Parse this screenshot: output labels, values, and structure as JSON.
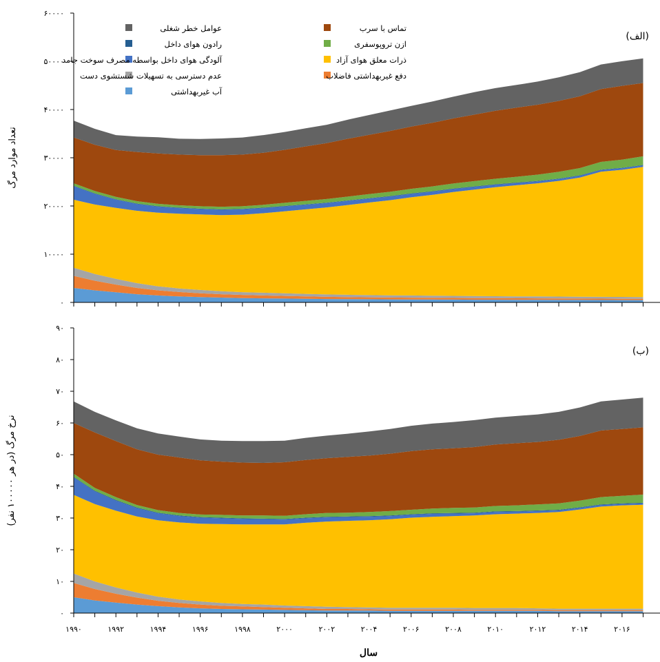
{
  "chart_data": [
    {
      "type": "area",
      "stacked": true,
      "panel_label": "(الف)",
      "ylabel": "تعداد موارد مرگ",
      "xlabel": "",
      "ylim": [
        0,
        60000
      ],
      "yticks": [
        "۰",
        "۱۰۰۰۰",
        "۲۰۰۰۰",
        "۳۰۰۰۰",
        "۴۰۰۰۰",
        "۵۰۰۰۰",
        "۶۰۰۰۰"
      ],
      "legend_position": "top",
      "x": [
        1990,
        1991,
        1992,
        1993,
        1994,
        1995,
        1996,
        1997,
        1998,
        1999,
        2000,
        2001,
        2002,
        2003,
        2004,
        2005,
        2006,
        2007,
        2008,
        2009,
        2010,
        2011,
        2012,
        2013,
        2014,
        2015,
        2016,
        2017
      ],
      "series": [
        {
          "name": "آب غیربهداشتی",
          "color": "#5b9bd5",
          "values": [
            3000,
            2500,
            2100,
            1700,
            1450,
            1250,
            1100,
            1000,
            900,
            850,
            800,
            750,
            700,
            680,
            650,
            630,
            620,
            600,
            580,
            560,
            550,
            540,
            530,
            520,
            510,
            500,
            490,
            480
          ]
        },
        {
          "name": "دفع غیربهداشتی فاضلاب",
          "color": "#ed7d31",
          "values": [
            2500,
            2000,
            1600,
            1300,
            1050,
            900,
            800,
            700,
            650,
            600,
            550,
            500,
            450,
            420,
            400,
            380,
            370,
            360,
            350,
            340,
            330,
            320,
            310,
            300,
            290,
            280,
            270,
            260
          ]
        },
        {
          "name": "عدم دسترسی به تسهیلات شستشوی دست",
          "color": "#a5a5a5",
          "values": [
            1700,
            1400,
            1200,
            1000,
            850,
            750,
            680,
            620,
            580,
            560,
            540,
            520,
            500,
            480,
            470,
            460,
            450,
            440,
            430,
            420,
            410,
            400,
            400,
            390,
            390,
            380,
            380,
            380
          ]
        },
        {
          "name": "ذرات معلق هوای آزاد",
          "color": "#ffc000",
          "values": [
            14100,
            14400,
            14700,
            15000,
            15250,
            15500,
            15670,
            15780,
            16070,
            16490,
            17010,
            17530,
            18050,
            18620,
            19190,
            19730,
            20360,
            20900,
            21540,
            22080,
            22610,
            23040,
            23460,
            23990,
            24710,
            25940,
            26360,
            26980
          ]
        },
        {
          "name": "آلودگی هوای داخل بواسطه مصرف سوخت جامد",
          "color": "#4472c4",
          "values": [
            2800,
            2200,
            1700,
            1400,
            1250,
            1150,
            1100,
            1100,
            1100,
            1050,
            1000,
            950,
            900,
            850,
            800,
            750,
            700,
            650,
            600,
            550,
            500,
            450,
            400,
            380,
            360,
            340,
            320,
            300
          ]
        },
        {
          "name": "رادون هوای داخل",
          "color": "#255e91",
          "values": [
            100,
            100,
            100,
            100,
            100,
            100,
            100,
            100,
            100,
            100,
            100,
            100,
            100,
            100,
            100,
            100,
            100,
            100,
            100,
            100,
            100,
            100,
            100,
            100,
            100,
            100,
            100,
            100
          ]
        },
        {
          "name": "ازن تروپوسفری",
          "color": "#70ad47",
          "values": [
            500,
            500,
            500,
            500,
            500,
            500,
            500,
            550,
            550,
            600,
            650,
            700,
            750,
            800,
            850,
            900,
            950,
            1000,
            1050,
            1100,
            1150,
            1200,
            1300,
            1400,
            1500,
            1600,
            1700,
            1800
          ]
        },
        {
          "name": "تماس با سرب",
          "color": "#9e480e",
          "values": [
            9500,
            9600,
            9700,
            10200,
            10450,
            10500,
            10600,
            10700,
            10700,
            10800,
            11000,
            11300,
            11600,
            12000,
            12300,
            12600,
            12900,
            13200,
            13500,
            13800,
            14100,
            14350,
            14500,
            14700,
            14900,
            15100,
            15300,
            15200
          ]
        },
        {
          "name": "عوامل خطر شغلی",
          "color": "#636363",
          "values": [
            3500,
            3300,
            3100,
            3200,
            3350,
            3300,
            3350,
            3450,
            3550,
            3650,
            3700,
            3750,
            3800,
            3950,
            4100,
            4250,
            4300,
            4400,
            4500,
            4650,
            4700,
            4700,
            4800,
            4900,
            5000,
            5100,
            5100,
            5100
          ]
        }
      ]
    },
    {
      "type": "area",
      "stacked": true,
      "panel_label": "(ب)",
      "ylabel": "نرخ مرگ (در هر ۱۰۰۰۰۰ نفر)",
      "xlabel": "سال",
      "ylim": [
        0,
        90
      ],
      "yticks": [
        "۰",
        "۱۰",
        "۲۰",
        "۳۰",
        "۴۰",
        "۵۰",
        "۶۰",
        "۷۰",
        "۸۰",
        "۹۰"
      ],
      "xticks": [
        "۱۹۹۰",
        "۱۹۹۲",
        "۱۹۹۴",
        "۱۹۹۶",
        "۱۹۹۸",
        "۲۰۰۰",
        "۲۰۰۲",
        "۲۰۰۴",
        "۲۰۰۶",
        "۲۰۰۸",
        "۲۰۱۰",
        "۲۰۱۲",
        "۲۰۱۴",
        "۲۰۱۶"
      ],
      "x": [
        1990,
        1991,
        1992,
        1993,
        1994,
        1995,
        1996,
        1997,
        1998,
        1999,
        2000,
        2001,
        2002,
        2003,
        2004,
        2005,
        2006,
        2007,
        2008,
        2009,
        2010,
        2011,
        2012,
        2013,
        2014,
        2015,
        2016,
        2017
      ],
      "series": [
        {
          "name": "آب غیربهداشتی",
          "color": "#5b9bd5",
          "values": [
            5.0,
            4.0,
            3.3,
            2.7,
            2.2,
            1.8,
            1.5,
            1.3,
            1.2,
            1.1,
            1.0,
            0.9,
            0.8,
            0.8,
            0.8,
            0.7,
            0.7,
            0.7,
            0.7,
            0.7,
            0.7,
            0.7,
            0.7,
            0.6,
            0.6,
            0.6,
            0.6,
            0.6
          ]
        },
        {
          "name": "دفع غیربهداشتی فاضلاب",
          "color": "#ed7d31",
          "values": [
            4.5,
            3.6,
            2.8,
            2.2,
            1.7,
            1.4,
            1.2,
            1.0,
            0.9,
            0.8,
            0.7,
            0.6,
            0.5,
            0.5,
            0.4,
            0.4,
            0.4,
            0.4,
            0.4,
            0.3,
            0.3,
            0.3,
            0.3,
            0.3,
            0.3,
            0.3,
            0.3,
            0.3
          ]
        },
        {
          "name": "عدم دسترسی به تسهیلات شستشوی دست",
          "color": "#a5a5a5",
          "values": [
            3.0,
            2.4,
            2.0,
            1.6,
            1.3,
            1.1,
            1.0,
            0.9,
            0.8,
            0.8,
            0.7,
            0.7,
            0.7,
            0.6,
            0.6,
            0.6,
            0.6,
            0.6,
            0.6,
            0.6,
            0.6,
            0.6,
            0.5,
            0.5,
            0.5,
            0.5,
            0.5,
            0.5
          ]
        },
        {
          "name": "ذرات معلق هوای آزاد",
          "color": "#ffc000",
          "values": [
            24.8,
            24.4,
            24.2,
            24.0,
            24.1,
            24.3,
            24.5,
            24.9,
            25.1,
            25.3,
            25.6,
            26.3,
            26.9,
            27.2,
            27.5,
            27.9,
            28.4,
            28.7,
            28.9,
            29.2,
            29.6,
            29.8,
            30.1,
            30.5,
            31.3,
            32.2,
            32.6,
            32.8
          ]
        },
        {
          "name": "آلودگی هوای داخل بواسطه مصرف سوخت جامد",
          "color": "#4472c4",
          "values": [
            5.5,
            4.0,
            3.2,
            2.6,
            2.2,
            2.0,
            1.9,
            1.8,
            1.7,
            1.6,
            1.5,
            1.4,
            1.3,
            1.2,
            1.1,
            1.0,
            0.9,
            0.9,
            0.8,
            0.7,
            0.7,
            0.6,
            0.6,
            0.5,
            0.5,
            0.5,
            0.4,
            0.4
          ]
        },
        {
          "name": "رادون هوای داخل",
          "color": "#255e91",
          "values": [
            0.2,
            0.2,
            0.2,
            0.2,
            0.2,
            0.2,
            0.2,
            0.2,
            0.2,
            0.2,
            0.2,
            0.2,
            0.2,
            0.2,
            0.2,
            0.2,
            0.2,
            0.2,
            0.2,
            0.2,
            0.2,
            0.2,
            0.2,
            0.2,
            0.2,
            0.2,
            0.2,
            0.2
          ]
        },
        {
          "name": "ازن تروپوسفری",
          "color": "#70ad47",
          "values": [
            1.0,
            0.9,
            0.9,
            0.8,
            0.8,
            0.8,
            0.8,
            0.9,
            0.9,
            1.0,
            1.0,
            1.1,
            1.2,
            1.2,
            1.3,
            1.4,
            1.4,
            1.5,
            1.6,
            1.6,
            1.7,
            1.8,
            1.9,
            2.0,
            2.1,
            2.3,
            2.4,
            2.6
          ]
        },
        {
          "name": "تماس با سرب",
          "color": "#9e480e",
          "values": [
            16.0,
            17.5,
            17.7,
            17.6,
            17.5,
            17.5,
            17.1,
            16.8,
            16.7,
            16.6,
            16.9,
            17.1,
            17.3,
            17.6,
            17.8,
            18.1,
            18.5,
            18.7,
            18.8,
            19.1,
            19.4,
            19.6,
            19.7,
            20.1,
            20.4,
            21.0,
            21.1,
            21.2
          ]
        },
        {
          "name": "عوامل خطر شغلی",
          "color": "#636363",
          "values": [
            6.8,
            6.5,
            6.5,
            6.6,
            6.7,
            6.6,
            6.6,
            6.6,
            6.8,
            6.9,
            6.8,
            7.0,
            7.1,
            7.3,
            7.6,
            7.8,
            8.0,
            8.1,
            8.3,
            8.5,
            8.5,
            8.6,
            8.7,
            8.8,
            9.0,
            9.2,
            9.3,
            9.4
          ]
        }
      ]
    }
  ]
}
